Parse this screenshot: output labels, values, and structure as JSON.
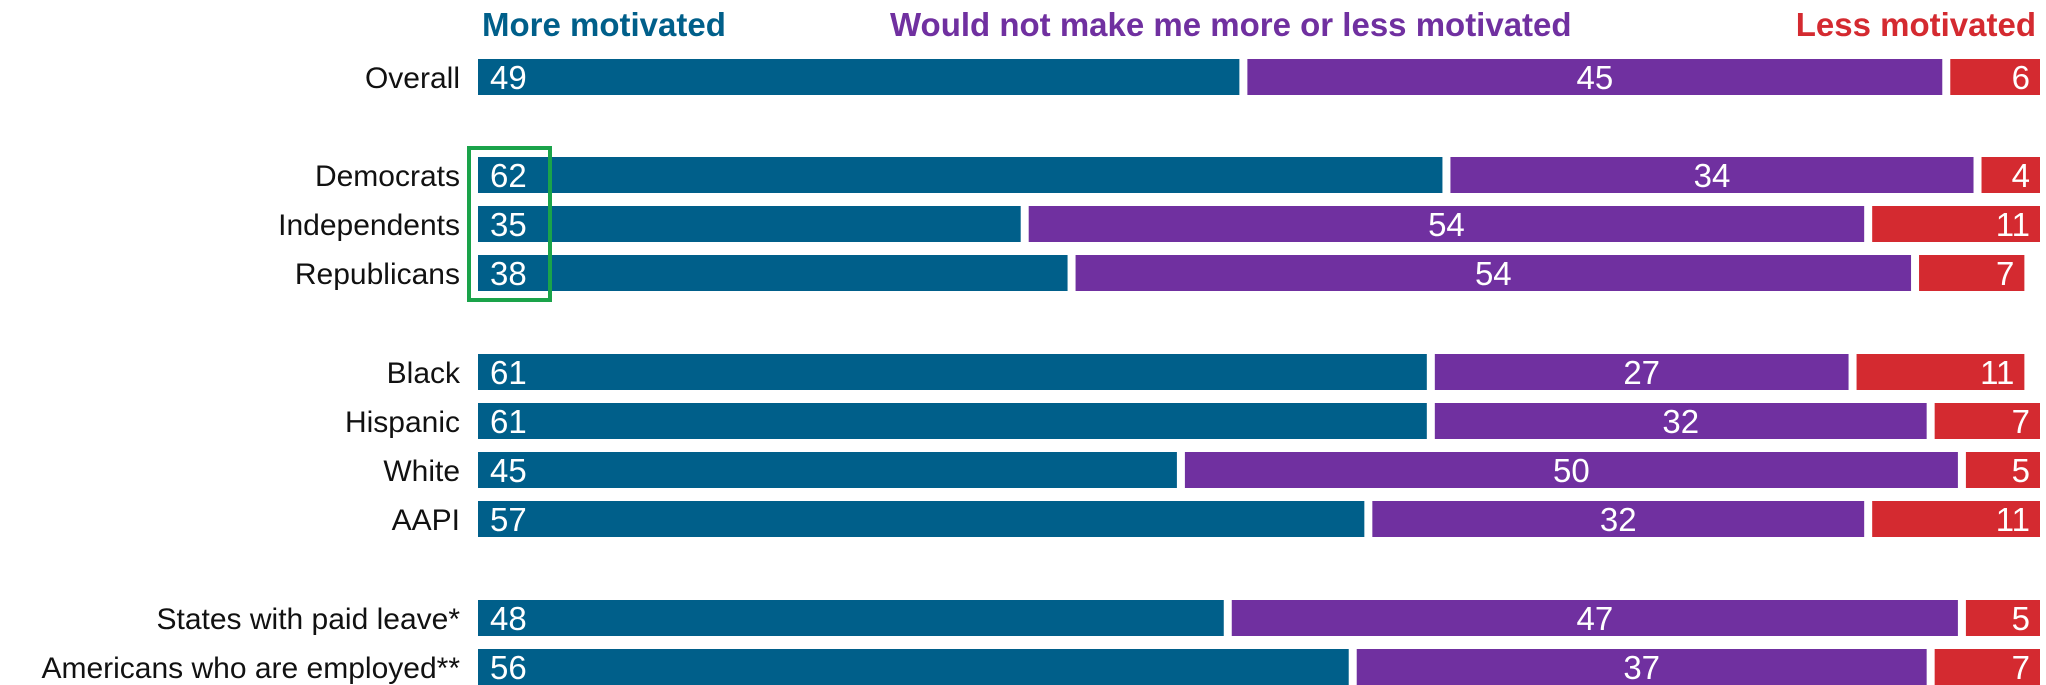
{
  "chart_data": {
    "type": "bar",
    "orientation": "horizontal",
    "stacked": true,
    "legend_placement": "top",
    "xlim": [
      0,
      100
    ],
    "grid": false,
    "series": [
      {
        "name": "More motivated",
        "color": "#005f8a",
        "values": [
          49,
          62,
          35,
          38,
          61,
          61,
          45,
          57,
          48,
          56
        ]
      },
      {
        "name": "Would not make me more or less motivated",
        "color": "#7030a0",
        "values": [
          45,
          34,
          54,
          54,
          27,
          32,
          50,
          32,
          47,
          37
        ]
      },
      {
        "name": "Less motivated",
        "color": "#d42a30",
        "values": [
          6,
          4,
          11,
          7,
          11,
          7,
          5,
          11,
          5,
          7
        ]
      }
    ],
    "categories": [
      "Overall",
      "Democrats",
      "Independents",
      "Republicans",
      "Black",
      "Hispanic",
      "White",
      "AAPI",
      "States with paid leave*",
      "Americans who are employed**"
    ],
    "groups": [
      [
        0
      ],
      [
        1,
        2,
        3
      ],
      [
        4,
        5,
        6,
        7
      ],
      [
        8,
        9
      ]
    ],
    "highlight": {
      "series": 0,
      "categories": [
        1,
        2,
        3
      ],
      "color": "#1aa34a"
    }
  }
}
